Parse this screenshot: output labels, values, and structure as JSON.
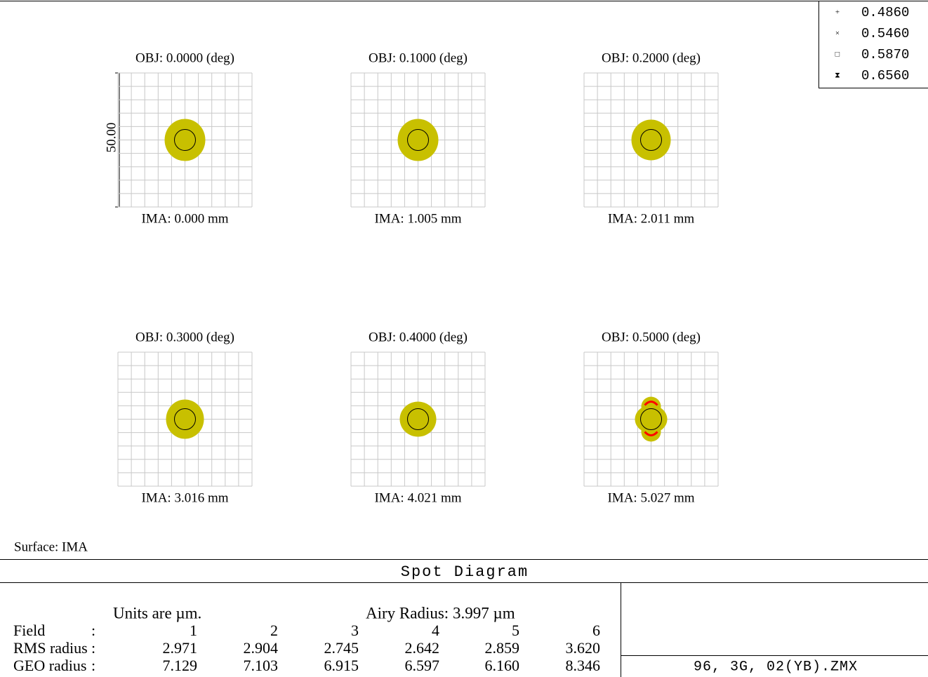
{
  "legend": [
    {
      "symbol": "+",
      "label": "0.4860",
      "color": "#0000ff"
    },
    {
      "symbol": "×",
      "label": "0.5460",
      "color": "#00ff00"
    },
    {
      "symbol": "□",
      "label": "0.5870",
      "color": "#ff0000"
    },
    {
      "symbol": "⧗",
      "label": "0.6560",
      "color": "#c8c000"
    }
  ],
  "scale_label": "50.00",
  "panels": [
    {
      "obj": "OBJ: 0.0000 (deg)",
      "ima": "IMA: 0.000 mm"
    },
    {
      "obj": "OBJ: 0.1000 (deg)",
      "ima": "IMA: 1.005 mm"
    },
    {
      "obj": "OBJ: 0.2000 (deg)",
      "ima": "IMA: 2.011 mm"
    },
    {
      "obj": "OBJ: 0.3000 (deg)",
      "ima": "IMA: 3.016 mm"
    },
    {
      "obj": "OBJ: 0.4000 (deg)",
      "ima": "IMA: 4.021 mm"
    },
    {
      "obj": "OBJ: 0.5000 (deg)",
      "ima": "IMA: 5.027 mm"
    }
  ],
  "surface": "Surface: IMA",
  "title": "Spot Diagram",
  "units": "Units are µm.",
  "airy": "Airy Radius: 3.997 µm",
  "table": {
    "rows": [
      {
        "label": "Field",
        "sep": ":",
        "values": [
          "1",
          "2",
          "3",
          "4",
          "5",
          "6"
        ]
      },
      {
        "label": "RMS radius",
        "sep": ":",
        "values": [
          "2.971",
          "2.904",
          "2.745",
          "2.642",
          "2.859",
          "3.620"
        ]
      },
      {
        "label": "GEO radius",
        "sep": ":",
        "values": [
          "7.129",
          "7.103",
          "6.915",
          "6.597",
          "6.160",
          "8.346"
        ]
      }
    ]
  },
  "file": "96, 3G, 02(YB).ZMX"
}
